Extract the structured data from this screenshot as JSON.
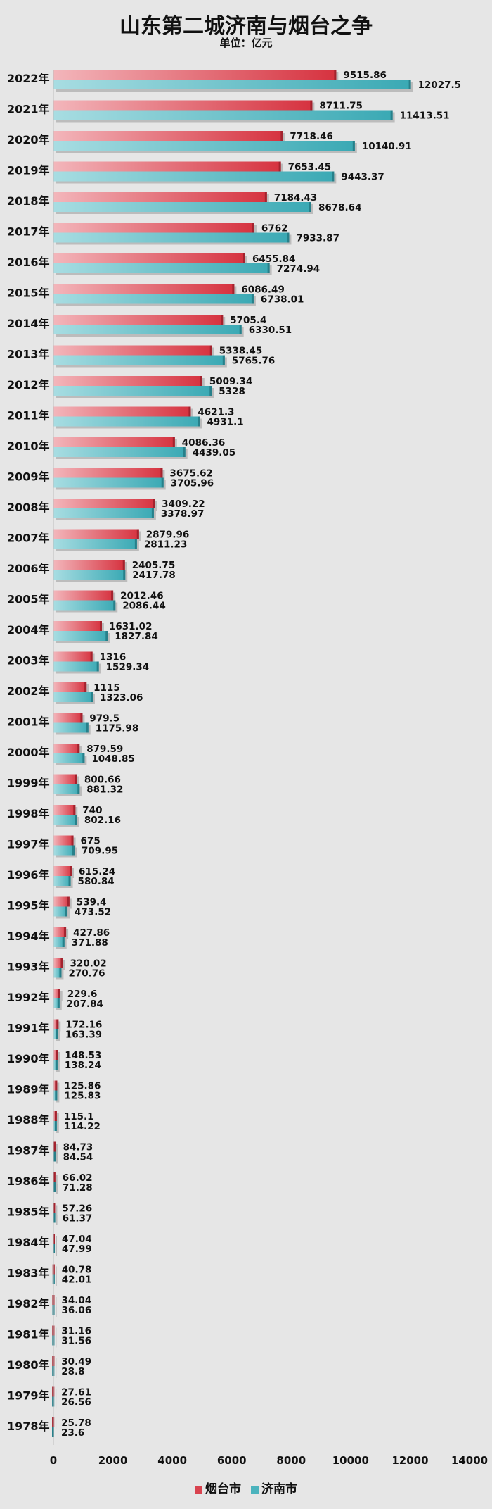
{
  "chart_data": {
    "type": "bar",
    "orientation": "horizontal",
    "title": "山东第二城济南与烟台之争",
    "subtitle": "单位：亿元",
    "categories": [
      "2022年",
      "2021年",
      "2020年",
      "2019年",
      "2018年",
      "2017年",
      "2016年",
      "2015年",
      "2014年",
      "2013年",
      "2012年",
      "2011年",
      "2010年",
      "2009年",
      "2008年",
      "2007年",
      "2006年",
      "2005年",
      "2004年",
      "2003年",
      "2002年",
      "2001年",
      "2000年",
      "1999年",
      "1998年",
      "1997年",
      "1996年",
      "1995年",
      "1994年",
      "1993年",
      "1992年",
      "1991年",
      "1990年",
      "1989年",
      "1988年",
      "1987年",
      "1986年",
      "1985年",
      "1984年",
      "1983年",
      "1982年",
      "1981年",
      "1980年",
      "1979年",
      "1978年"
    ],
    "series": [
      {
        "name": "烟台市",
        "color": "#d9434f",
        "values": [
          "9515.86",
          "8711.75",
          "7718.46",
          "7653.45",
          "7184.43",
          "6762",
          "6455.84",
          "6086.49",
          "5705.4",
          "5338.45",
          "5009.34",
          "4621.3",
          "4086.36",
          "3675.62",
          "3409.22",
          "2879.96",
          "2405.75",
          "2012.46",
          "1631.02",
          "1316",
          "1115",
          "979.5",
          "879.59",
          "800.66",
          "740",
          "675",
          "615.24",
          "539.4",
          "427.86",
          "320.02",
          "229.6",
          "172.16",
          "148.53",
          "125.86",
          "115.1",
          "84.73",
          "66.02",
          "57.26",
          "47.04",
          "40.78",
          "34.04",
          "31.16",
          "30.49",
          "27.61",
          "25.78"
        ]
      },
      {
        "name": "济南市",
        "color": "#4bb3bd",
        "values": [
          "12027.5",
          "11413.51",
          "10140.91",
          "9443.37",
          "8678.64",
          "7933.87",
          "7274.94",
          "6738.01",
          "6330.51",
          "5765.76",
          "5328",
          "4931.1",
          "4439.05",
          "3705.96",
          "3378.97",
          "2811.23",
          "2417.78",
          "2086.44",
          "1827.84",
          "1529.34",
          "1323.06",
          "1175.98",
          "1048.85",
          "881.32",
          "802.16",
          "709.95",
          "580.84",
          "473.52",
          "371.88",
          "270.76",
          "207.84",
          "163.39",
          "138.24",
          "125.83",
          "114.22",
          "84.54",
          "71.28",
          "61.37",
          "47.99",
          "42.01",
          "36.06",
          "31.56",
          "28.8",
          "26.56",
          "23.6"
        ]
      }
    ],
    "xlim": [
      0,
      14000
    ],
    "xticks": [
      "0",
      "2000",
      "4000",
      "6000",
      "8000",
      "10000",
      "12000",
      "14000"
    ],
    "grid": false,
    "legend": "bottom"
  }
}
